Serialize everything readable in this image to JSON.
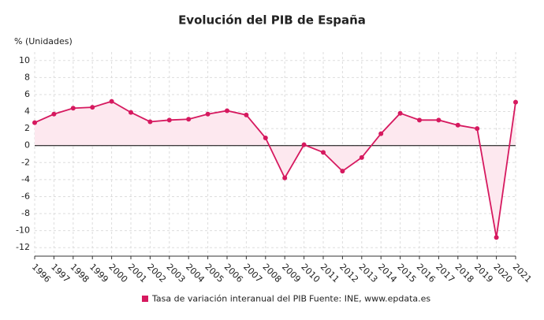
{
  "chart_data": {
    "type": "line",
    "title": "Evolución del PIB de España",
    "y_label": "% (Unidades)",
    "categories": [
      "1996",
      "1997",
      "1998",
      "1999",
      "2000",
      "2001",
      "2002",
      "2003",
      "2004",
      "2005",
      "2006",
      "2007",
      "2008",
      "2009",
      "2010",
      "2011",
      "2012",
      "2013",
      "2014",
      "2015",
      "2016",
      "2017",
      "2018",
      "2019",
      "2020",
      "2021"
    ],
    "series": [
      {
        "name": "Tasa de variación interanual del PIB",
        "color": "#d6195f",
        "values": [
          2.7,
          3.7,
          4.4,
          4.5,
          5.2,
          3.9,
          2.8,
          3.0,
          3.1,
          3.7,
          4.1,
          3.6,
          0.9,
          -3.8,
          0.1,
          -0.8,
          -3.0,
          -1.4,
          1.4,
          3.8,
          3.0,
          3.0,
          2.4,
          2.0,
          -10.8,
          5.1
        ]
      }
    ],
    "ylim": [
      -13,
      11
    ],
    "yticks": [
      -12,
      -10,
      -8,
      -6,
      -4,
      -2,
      0,
      2,
      4,
      6,
      8,
      10
    ],
    "grid": true,
    "area_fill": "#fde8ef",
    "source": "Fuente: INE, www.epdata.es"
  }
}
